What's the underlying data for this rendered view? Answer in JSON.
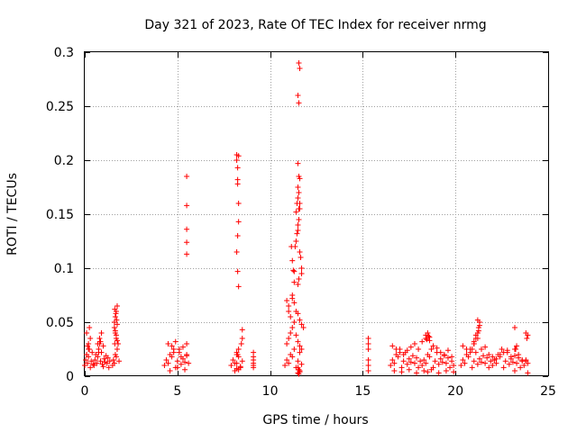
{
  "chart_data": {
    "type": "scatter",
    "title": "Day 321 of 2023, Rate Of TEC Index for receiver nrmg",
    "xlabel": "GPS time / hours",
    "ylabel": "ROTI / TECUs",
    "xlim": [
      0,
      25
    ],
    "ylim": [
      0,
      0.3
    ],
    "x_ticks": [
      0,
      5,
      10,
      15,
      20,
      25
    ],
    "x_tick_labels": [
      "0",
      "5",
      "10",
      "15",
      "20",
      "25"
    ],
    "y_ticks": [
      0,
      0.05,
      0.1,
      0.15,
      0.2,
      0.25,
      0.3
    ],
    "y_tick_labels": [
      "0",
      "0.05",
      "0.1",
      "0.15",
      "0.2",
      "0.25",
      "0.3"
    ],
    "grid": true,
    "marker": "+",
    "marker_color": "#ff0000",
    "series": [
      {
        "name": "ROTI",
        "x": [
          0.0,
          0.05,
          0.1,
          0.15,
          0.2,
          0.25,
          0.3,
          0.35,
          0.4,
          0.45,
          0.1,
          0.2,
          0.3,
          0.15,
          0.25,
          0.1,
          0.2,
          0.5,
          0.55,
          0.6,
          0.65,
          0.7,
          0.75,
          0.8,
          0.85,
          0.9,
          0.95,
          1.0,
          1.05,
          1.1,
          1.15,
          1.2,
          1.25,
          1.3,
          1.35,
          0.7,
          0.8,
          0.9,
          1.0,
          0.75,
          0.85,
          1.5,
          1.55,
          1.6,
          1.65,
          1.7,
          1.75,
          1.8,
          1.85,
          1.6,
          1.65,
          1.7,
          1.75,
          1.6,
          1.65,
          1.7,
          1.75,
          1.62,
          1.68,
          1.72,
          1.65,
          1.7,
          1.62,
          1.75,
          4.3,
          4.4,
          4.5,
          4.6,
          4.7,
          4.8,
          4.9,
          5.0,
          5.1,
          5.2,
          5.3,
          5.4,
          5.5,
          5.6,
          4.5,
          4.7,
          4.9,
          5.1,
          5.3,
          5.5,
          4.6,
          5.0,
          5.4,
          4.8,
          5.2,
          5.5,
          5.5,
          5.5,
          5.5,
          5.5,
          5.5,
          7.9,
          8.0,
          8.1,
          8.2,
          8.3,
          8.4,
          8.5,
          8.1,
          8.2,
          8.3,
          8.4,
          8.2,
          8.3,
          8.2,
          8.2,
          8.25,
          8.25,
          8.25,
          8.3,
          8.3,
          8.25,
          8.2,
          8.25,
          8.3,
          8.3,
          8.25,
          8.2,
          8.5,
          8.5,
          8.45,
          9.1,
          9.1,
          9.1,
          9.1,
          9.1,
          9.1,
          10.8,
          10.9,
          11.0,
          11.1,
          11.2,
          11.3,
          11.4,
          11.5,
          11.6,
          11.7,
          10.9,
          11.0,
          11.1,
          11.2,
          11.3,
          11.4,
          11.5,
          11.6,
          11.7,
          10.9,
          11.0,
          11.0,
          11.1,
          11.2,
          11.2,
          11.3,
          11.4,
          11.5,
          11.6,
          11.7,
          11.8,
          11.15,
          11.2,
          11.25,
          11.3,
          11.3,
          11.35,
          11.4,
          11.45,
          11.5,
          11.5,
          11.55,
          11.6,
          11.6,
          11.65,
          11.7,
          11.7,
          11.4,
          11.45,
          11.5,
          11.55,
          11.5,
          11.55,
          11.6,
          11.5,
          11.55,
          11.5,
          11.6,
          11.55,
          11.5,
          11.55,
          11.6,
          11.55,
          11.5,
          11.55,
          11.6,
          11.5,
          11.55,
          11.6,
          15.3,
          15.3,
          15.3,
          15.3,
          15.3,
          15.3,
          16.5,
          16.6,
          16.7,
          16.8,
          16.9,
          17.0,
          17.1,
          17.2,
          17.3,
          17.4,
          17.5,
          17.6,
          17.7,
          17.8,
          17.9,
          18.0,
          18.1,
          18.2,
          18.3,
          18.4,
          18.5,
          18.6,
          18.7,
          18.8,
          18.9,
          19.0,
          19.1,
          19.2,
          19.3,
          19.4,
          19.5,
          19.6,
          19.7,
          19.8,
          19.9,
          16.6,
          16.8,
          17.0,
          17.2,
          17.4,
          17.6,
          17.8,
          18.0,
          18.2,
          18.4,
          18.6,
          18.8,
          19.0,
          19.2,
          19.4,
          19.6,
          19.8,
          16.7,
          17.1,
          17.5,
          17.9,
          18.3,
          18.5,
          18.7,
          19.1,
          19.5,
          19.9,
          18.4,
          18.5,
          18.6,
          18.45,
          18.55,
          20.3,
          20.4,
          20.5,
          20.6,
          20.7,
          20.8,
          20.9,
          21.0,
          21.1,
          21.2,
          21.3,
          21.4,
          21.5,
          21.6,
          21.7,
          21.8,
          21.9,
          22.0,
          22.1,
          22.2,
          22.3,
          22.4,
          22.5,
          22.6,
          22.7,
          22.8,
          22.9,
          23.0,
          23.1,
          23.2,
          23.3,
          23.4,
          23.5,
          23.6,
          23.7,
          23.8,
          23.9,
          20.4,
          20.6,
          20.8,
          21.0,
          21.2,
          21.4,
          21.6,
          21.8,
          22.0,
          22.2,
          22.4,
          22.6,
          22.8,
          23.0,
          23.2,
          23.4,
          23.6,
          23.8,
          21.0,
          21.1,
          21.2,
          21.25,
          21.3,
          21.2,
          21.3,
          21.25,
          20.9,
          21.0,
          21.1,
          23.2,
          23.3,
          23.25,
          23.8,
          23.9,
          23.85,
          23.2,
          23.9
        ],
        "y": [
          0.01,
          0.015,
          0.02,
          0.012,
          0.018,
          0.025,
          0.008,
          0.014,
          0.022,
          0.011,
          0.04,
          0.03,
          0.035,
          0.028,
          0.045,
          0.02,
          0.025,
          0.01,
          0.015,
          0.02,
          0.012,
          0.018,
          0.025,
          0.03,
          0.014,
          0.022,
          0.011,
          0.009,
          0.016,
          0.013,
          0.019,
          0.012,
          0.017,
          0.008,
          0.014,
          0.03,
          0.035,
          0.04,
          0.028,
          0.022,
          0.032,
          0.01,
          0.015,
          0.012,
          0.02,
          0.018,
          0.025,
          0.03,
          0.014,
          0.05,
          0.055,
          0.06,
          0.065,
          0.045,
          0.04,
          0.035,
          0.048,
          0.062,
          0.058,
          0.052,
          0.042,
          0.038,
          0.03,
          0.033,
          0.01,
          0.015,
          0.012,
          0.02,
          0.018,
          0.025,
          0.008,
          0.014,
          0.022,
          0.011,
          0.016,
          0.013,
          0.019,
          0.012,
          0.03,
          0.028,
          0.032,
          0.025,
          0.027,
          0.03,
          0.005,
          0.008,
          0.006,
          0.022,
          0.018,
          0.185,
          0.158,
          0.136,
          0.124,
          0.113,
          0.02,
          0.01,
          0.015,
          0.012,
          0.02,
          0.018,
          0.008,
          0.014,
          0.005,
          0.007,
          0.006,
          0.009,
          0.022,
          0.025,
          0.205,
          0.2,
          0.193,
          0.182,
          0.178,
          0.16,
          0.143,
          0.13,
          0.115,
          0.097,
          0.083,
          0.204,
          0.02,
          0.012,
          0.043,
          0.035,
          0.03,
          0.022,
          0.018,
          0.012,
          0.008,
          0.015,
          0.01,
          0.01,
          0.015,
          0.012,
          0.02,
          0.018,
          0.025,
          0.008,
          0.014,
          0.022,
          0.011,
          0.03,
          0.035,
          0.04,
          0.045,
          0.05,
          0.038,
          0.032,
          0.028,
          0.025,
          0.07,
          0.065,
          0.06,
          0.055,
          0.075,
          0.072,
          0.068,
          0.06,
          0.058,
          0.052,
          0.048,
          0.045,
          0.12,
          0.107,
          0.098,
          0.097,
          0.087,
          0.12,
          0.125,
          0.132,
          0.14,
          0.135,
          0.145,
          0.115,
          0.155,
          0.11,
          0.1,
          0.095,
          0.152,
          0.16,
          0.165,
          0.17,
          0.175,
          0.185,
          0.183,
          0.197,
          0.253,
          0.26,
          0.285,
          0.29,
          0.085,
          0.09,
          0.16,
          0.155,
          0.003,
          0.006,
          0.004,
          0.008,
          0.002,
          0.005,
          0.035,
          0.03,
          0.025,
          0.015,
          0.01,
          0.005,
          0.01,
          0.015,
          0.012,
          0.02,
          0.018,
          0.025,
          0.008,
          0.014,
          0.022,
          0.011,
          0.016,
          0.013,
          0.019,
          0.012,
          0.017,
          0.008,
          0.014,
          0.01,
          0.015,
          0.012,
          0.02,
          0.018,
          0.025,
          0.008,
          0.014,
          0.022,
          0.011,
          0.016,
          0.013,
          0.019,
          0.012,
          0.017,
          0.008,
          0.014,
          0.01,
          0.028,
          0.025,
          0.022,
          0.02,
          0.024,
          0.027,
          0.03,
          0.025,
          0.032,
          0.035,
          0.033,
          0.028,
          0.026,
          0.022,
          0.02,
          0.024,
          0.018,
          0.005,
          0.004,
          0.006,
          0.003,
          0.005,
          0.004,
          0.006,
          0.003,
          0.005,
          0.004,
          0.038,
          0.04,
          0.036,
          0.034,
          0.037,
          0.01,
          0.015,
          0.012,
          0.02,
          0.018,
          0.025,
          0.008,
          0.014,
          0.022,
          0.011,
          0.016,
          0.013,
          0.019,
          0.012,
          0.017,
          0.008,
          0.014,
          0.01,
          0.015,
          0.012,
          0.02,
          0.018,
          0.025,
          0.008,
          0.014,
          0.022,
          0.011,
          0.016,
          0.013,
          0.019,
          0.012,
          0.017,
          0.008,
          0.014,
          0.01,
          0.015,
          0.012,
          0.028,
          0.025,
          0.022,
          0.03,
          0.035,
          0.025,
          0.027,
          0.02,
          0.018,
          0.016,
          0.02,
          0.022,
          0.024,
          0.018,
          0.025,
          0.02,
          0.015,
          0.014,
          0.03,
          0.035,
          0.04,
          0.045,
          0.05,
          0.052,
          0.047,
          0.042,
          0.025,
          0.032,
          0.038,
          0.045,
          0.028,
          0.025,
          0.04,
          0.038,
          0.035,
          0.005,
          0.003
        ]
      }
    ]
  }
}
